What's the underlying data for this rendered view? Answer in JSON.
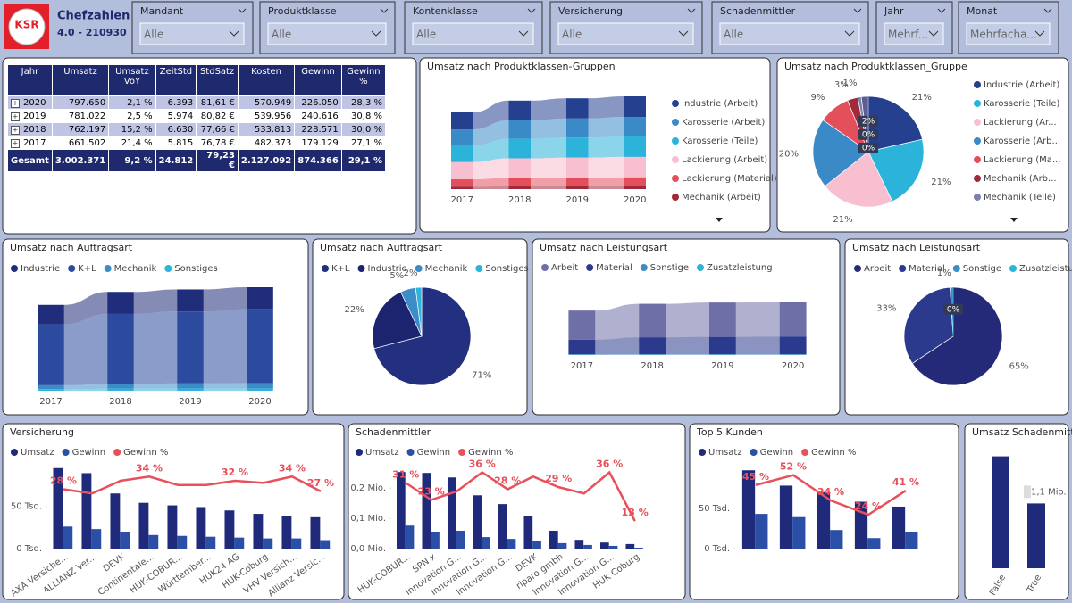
{
  "header": {
    "logo": "KSR",
    "title": "Chefzahlen",
    "version": "4.0 - 210930"
  },
  "slicers": [
    {
      "label": "Mandant",
      "value": "Alle"
    },
    {
      "label": "Produktklasse",
      "value": "Alle"
    },
    {
      "label": "Kontenklasse",
      "value": "Alle"
    },
    {
      "label": "Versicherung",
      "value": "Alle"
    },
    {
      "label": "Schadenmittler",
      "value": "Alle"
    },
    {
      "label": "Jahr",
      "value": "Mehrf..."
    },
    {
      "label": "Monat",
      "value": "Mehrfacha..."
    }
  ],
  "table": {
    "columns": [
      "Jahr",
      "Umsatz",
      "Umsatz VoY",
      "ZeitStd",
      "StdSatz",
      "Kosten",
      "Gewinn",
      "Gewinn %"
    ],
    "rows": [
      [
        "2020",
        "797.650",
        "2,1 %",
        "6.393",
        "81,61 €",
        "570.949",
        "226.050",
        "28,3 %"
      ],
      [
        "2019",
        "781.022",
        "2,5 %",
        "5.974",
        "80,82 €",
        "539.956",
        "240.616",
        "30,8 %"
      ],
      [
        "2018",
        "762.197",
        "15,2 %",
        "6.630",
        "77,66 €",
        "533.813",
        "228.571",
        "30,0 %"
      ],
      [
        "2017",
        "661.502",
        "21,4 %",
        "5.815",
        "76,78 €",
        "482.373",
        "179.129",
        "27,1 %"
      ]
    ],
    "total": [
      "Gesamt",
      "3.002.371",
      "9,2 %",
      "24.812",
      "79,23 €",
      "2.127.092",
      "874.366",
      "29,1 %"
    ]
  },
  "chart_data": [
    {
      "type": "ribbon",
      "title": "Umsatz nach Produktklassen-Gruppen",
      "legend": "right",
      "categories": [
        "2017",
        "2018",
        "2019",
        "2020"
      ],
      "series": [
        {
          "name": "Industrie (Arbeit)",
          "color": "#24408f",
          "values": [
            140000,
            160000,
            165000,
            168000
          ]
        },
        {
          "name": "Karosserie (Arbeit)",
          "color": "#3a8ac8",
          "values": [
            130000,
            152000,
            156000,
            160000
          ]
        },
        {
          "name": "Karosserie (Teile)",
          "color": "#2bb3da",
          "values": [
            138000,
            160000,
            164000,
            167000
          ]
        },
        {
          "name": "Lackierung (Arbeit)",
          "color": "#f7bfd0",
          "values": [
            140000,
            160000,
            164000,
            167000
          ]
        },
        {
          "name": "Lackierung (Material)",
          "color": "#e3505c",
          "values": [
            60000,
            68000,
            70000,
            72000
          ]
        },
        {
          "name": "Mechanik (Arbeit)",
          "color": "#a12a3a",
          "values": [
            20000,
            23000,
            23000,
            24000
          ]
        }
      ]
    },
    {
      "type": "pie",
      "title": "Umsatz nach Produktklassen_Gruppe",
      "legend": "right",
      "categories": [
        "Industrie (Arbeit)",
        "Karosserie (Teile)",
        "Lackierung (Ar...",
        "Karosserie (Arb...",
        "Lackierung (Ma...",
        "Mechanik (Arb...",
        "Mechanik (Teile)",
        null,
        null,
        null
      ],
      "values": [
        21,
        21,
        21,
        20,
        9,
        3,
        1,
        2,
        0,
        0
      ],
      "value_labels": [
        "21%",
        "21%",
        "21%",
        "20%",
        "9%",
        "3%",
        "1%",
        "2%",
        "0%",
        "0%"
      ],
      "colors": [
        "#24408f",
        "#2bb3da",
        "#f7bfd0",
        "#3a8ac8",
        "#e3505c",
        "#a12a3a",
        "#7d80b0",
        "#5b5f8f",
        "#3d3d6a",
        "#9fa3c8"
      ]
    },
    {
      "type": "ribbon",
      "title": "Umsatz nach Auftragsart",
      "legend": "top",
      "categories": [
        "2017",
        "2018",
        "2019",
        "2020"
      ],
      "series": [
        {
          "name": "Industrie",
          "color": "#1f2d7a",
          "values": [
            150000,
            170000,
            170000,
            170000
          ]
        },
        {
          "name": "K+L",
          "color": "#2c4a9e",
          "values": [
            470000,
            540000,
            555000,
            570000
          ]
        },
        {
          "name": "Mechanik",
          "color": "#3c8cc8",
          "values": [
            30000,
            37000,
            40000,
            42000
          ]
        },
        {
          "name": "Sonstiges",
          "color": "#2cb5d8",
          "values": [
            12000,
            15000,
            16000,
            16000
          ]
        }
      ]
    },
    {
      "type": "pie",
      "title": "Umsatz nach Auftragsart",
      "legend": "top",
      "categories": [
        "K+L",
        "Industrie",
        "Mechanik",
        "Sonstiges"
      ],
      "values": [
        71,
        22,
        5,
        2
      ],
      "value_labels": [
        "71%",
        "22%",
        "5%",
        "2%"
      ],
      "colors": [
        "#23307f",
        "#1c2470",
        "#3c8cc8",
        "#2cb5d8"
      ]
    },
    {
      "type": "ribbon",
      "title": "Umsatz nach Leistungsart",
      "legend": "top",
      "categories": [
        "2017",
        "2018",
        "2019",
        "2020"
      ],
      "series": [
        {
          "name": "Arbeit",
          "color": "#6f6fa8",
          "values": [
            430000,
            495000,
            508000,
            518000
          ]
        },
        {
          "name": "Material",
          "color": "#2c3a8e",
          "values": [
            218000,
            252000,
            258000,
            263000
          ]
        },
        {
          "name": "Sonstige",
          "color": "#3c8cc8",
          "values": [
            7000,
            8000,
            8000,
            8000
          ]
        },
        {
          "name": "Zusatzleistung",
          "color": "#2cb5d8",
          "values": [
            2000,
            2000,
            2000,
            2000
          ]
        }
      ]
    },
    {
      "type": "pie",
      "title": "Umsatz nach Leistungsart",
      "legend": "top",
      "categories": [
        "Arbeit",
        "Material",
        "Sonstige",
        "Zusatzleistung"
      ],
      "values": [
        65,
        33,
        1,
        0
      ],
      "value_labels": [
        "65%",
        "33%",
        "1%",
        "0%"
      ],
      "colors": [
        "#242a78",
        "#2c3a8e",
        "#3c8cc8",
        "#2cb5d8"
      ]
    },
    {
      "type": "combo",
      "title": "Versicherung",
      "categories": [
        "AXA Versiche...",
        "ALLIANZ Ver...",
        "DEVK",
        "Continentale...",
        "HUK-COBUR...",
        "Württember...",
        "HUK24 AG",
        "HUK-Coburg",
        "VHV Versich...",
        "Allianz Versic..."
      ],
      "ylim": [
        0,
        100000
      ],
      "yticks": [
        {
          "value": 0,
          "label": "0 Tsd."
        },
        {
          "value": 50000,
          "label": "50 Tsd."
        }
      ],
      "y2lim": [
        0,
        40
      ],
      "series": [
        {
          "name": "Umsatz",
          "type": "bar",
          "color": "#1f2a7a",
          "values": [
            95000,
            89000,
            65000,
            54000,
            51000,
            49000,
            45000,
            41000,
            38000,
            37000
          ]
        },
        {
          "name": "Gewinn",
          "type": "bar",
          "color": "#2b4ea6",
          "values": [
            26000,
            23000,
            20000,
            16000,
            15000,
            14000,
            13000,
            12000,
            12000,
            10000
          ]
        },
        {
          "name": "Gewinn %",
          "type": "line",
          "axis": "y2",
          "color": "#e8505b",
          "values": [
            28,
            26,
            32,
            34,
            30,
            30,
            32,
            31,
            34,
            27
          ],
          "value_labels": [
            "28 %",
            null,
            null,
            "34 %",
            null,
            null,
            "32 %",
            null,
            "34 %",
            "27 %"
          ]
        }
      ]
    },
    {
      "type": "combo",
      "title": "Schadenmittler",
      "categories": [
        "HUK-COBUR...",
        "SPN x",
        "Innovation G...",
        "Innovation G...",
        "Innovation G...",
        "DEVK",
        "riparo gmbh",
        "Innovation G...",
        "Innovation G...",
        "HUK Coburg"
      ],
      "ylim": [
        0,
        280000
      ],
      "yticks": [
        {
          "value": 0,
          "label": "0,0 Mio."
        },
        {
          "value": 100000,
          "label": "0,1 Mio."
        },
        {
          "value": 200000,
          "label": "0,2 Mio."
        }
      ],
      "y2lim": [
        0,
        40
      ],
      "series": [
        {
          "name": "Umsatz",
          "type": "bar",
          "color": "#1f2a7a",
          "values": [
            253000,
            250000,
            235000,
            176000,
            147000,
            109000,
            59000,
            29000,
            20000,
            15000
          ]
        },
        {
          "name": "Gewinn",
          "type": "bar",
          "color": "#2b4ea6",
          "values": [
            76000,
            56000,
            59000,
            38000,
            32000,
            26000,
            18000,
            12000,
            9000,
            3000
          ]
        },
        {
          "name": "Gewinn %",
          "type": "line",
          "axis": "y2",
          "color": "#e8505b",
          "values": [
            31,
            23,
            27,
            36,
            28,
            34,
            29,
            26,
            36,
            13
          ],
          "value_labels": [
            "31 %",
            "23 %",
            null,
            "36 %",
            "28 %",
            null,
            "29 %",
            null,
            "36 %",
            "13 %"
          ]
        }
      ]
    },
    {
      "type": "combo",
      "title": "Top 5 Kunden",
      "categories": [
        null,
        null,
        null,
        null,
        null
      ],
      "ylim": [
        0,
        105000
      ],
      "yticks": [
        {
          "value": 0,
          "label": "0 Tsd."
        },
        {
          "value": 50000,
          "label": "50 Tsd."
        }
      ],
      "y2lim": [
        0,
        60
      ],
      "series": [
        {
          "name": "Umsatz",
          "type": "bar",
          "color": "#1f2a7a",
          "values": [
            97000,
            78000,
            70000,
            58000,
            52000
          ]
        },
        {
          "name": "Gewinn",
          "type": "bar",
          "color": "#2b4ea6",
          "values": [
            43000,
            39000,
            23000,
            13000,
            21000
          ]
        },
        {
          "name": "Gewinn %",
          "type": "line",
          "axis": "y2",
          "color": "#e8505b",
          "values": [
            45,
            52,
            34,
            24,
            41
          ],
          "value_labels": [
            "45 %",
            "52 %",
            "34 %",
            "24 %",
            "41 %"
          ]
        }
      ]
    },
    {
      "type": "bar",
      "title": "Umsatz Schadenmittler",
      "color": "#1f2a7a",
      "categories": [
        "False",
        "True"
      ],
      "values": [
        1900000,
        1100000
      ],
      "value_labels": [
        null,
        "1,1 Mio."
      ],
      "ylim": [
        0,
        2000000
      ]
    }
  ]
}
